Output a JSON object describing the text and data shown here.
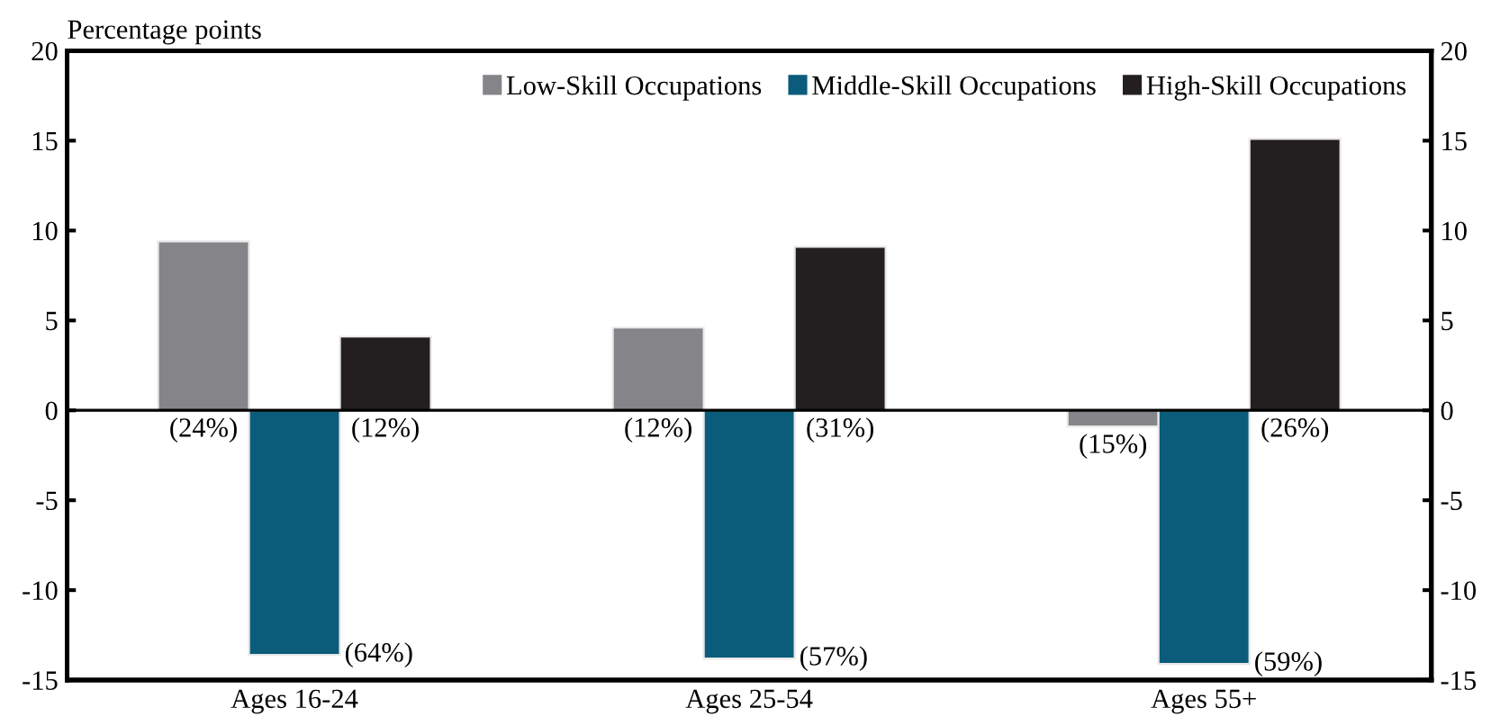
{
  "chart_data": {
    "type": "bar",
    "ylabel": "Percentage points",
    "categories": [
      "Ages 16-24",
      "Ages 25-54",
      "Ages 55+"
    ],
    "series": [
      {
        "name": "Low-Skill Occupations",
        "color": "#858589",
        "values": [
          9.4,
          4.6,
          -0.9
        ]
      },
      {
        "name": "Middle-Skill Occupations",
        "color": "#0b5c7b",
        "values": [
          -13.6,
          -13.8,
          -14.1
        ]
      },
      {
        "name": "High-Skill Occupations",
        "color": "#231f20",
        "values": [
          4.1,
          9.1,
          15.1
        ]
      }
    ],
    "annotations": [
      "(24%)",
      "(12%)",
      "(15%)",
      "(64%)",
      "(57%)",
      "(59%)",
      "(12%)",
      "(31%)",
      "(26%)"
    ],
    "ref_lines": [
      {
        "axis": "y",
        "value": 0,
        "color": "#000000"
      }
    ],
    "ylim": [
      -15,
      20
    ],
    "yticks": [
      -15,
      -10,
      -5,
      0,
      5,
      10,
      15,
      20
    ],
    "y2lim": [
      -15,
      20
    ],
    "y2ticks": [
      -15,
      -10,
      -5,
      0,
      5,
      10,
      15,
      20
    ],
    "legend": "top right"
  }
}
